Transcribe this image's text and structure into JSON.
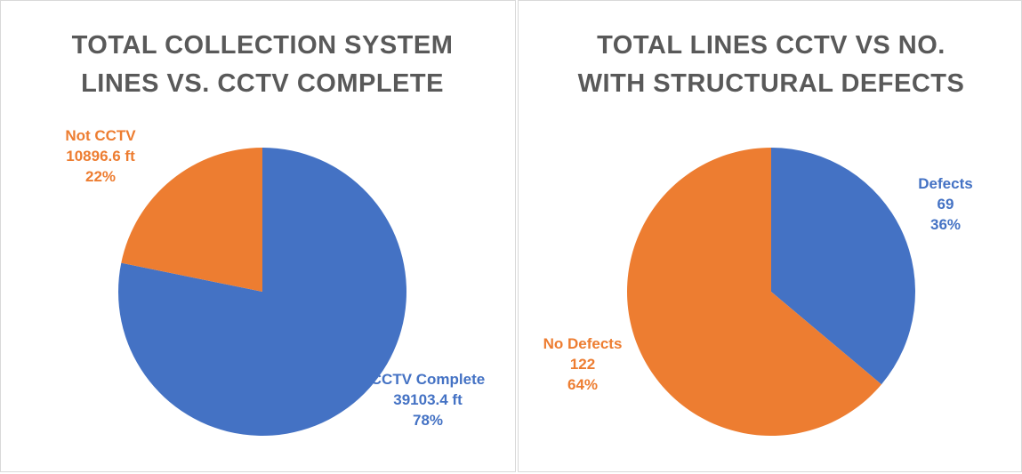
{
  "chart_data": [
    {
      "type": "pie",
      "title": "TOTAL COLLECTION SYSTEM LINES VS. CCTV COMPLETE",
      "categories": [
        "CCTV Complete",
        "Not CCTV"
      ],
      "values": [
        39103.4,
        10896.6
      ],
      "value_labels": [
        "39103.4 ft",
        "10896.6 ft"
      ],
      "percents": [
        {
          "value": 78,
          "label": "78%"
        },
        {
          "value": 22,
          "label": "22%"
        }
      ],
      "colors": [
        "#4472c4",
        "#ed7d31"
      ]
    },
    {
      "type": "pie",
      "title": "TOTAL LINES CCTV VS NO. WITH STRUCTURAL DEFECTS",
      "categories": [
        "Defects",
        "No Defects"
      ],
      "values": [
        69,
        122
      ],
      "percents": [
        {
          "value": 36,
          "label": "36%"
        },
        {
          "value": 64,
          "label": "64%"
        }
      ],
      "colors": [
        "#4472c4",
        "#ed7d31"
      ]
    }
  ]
}
